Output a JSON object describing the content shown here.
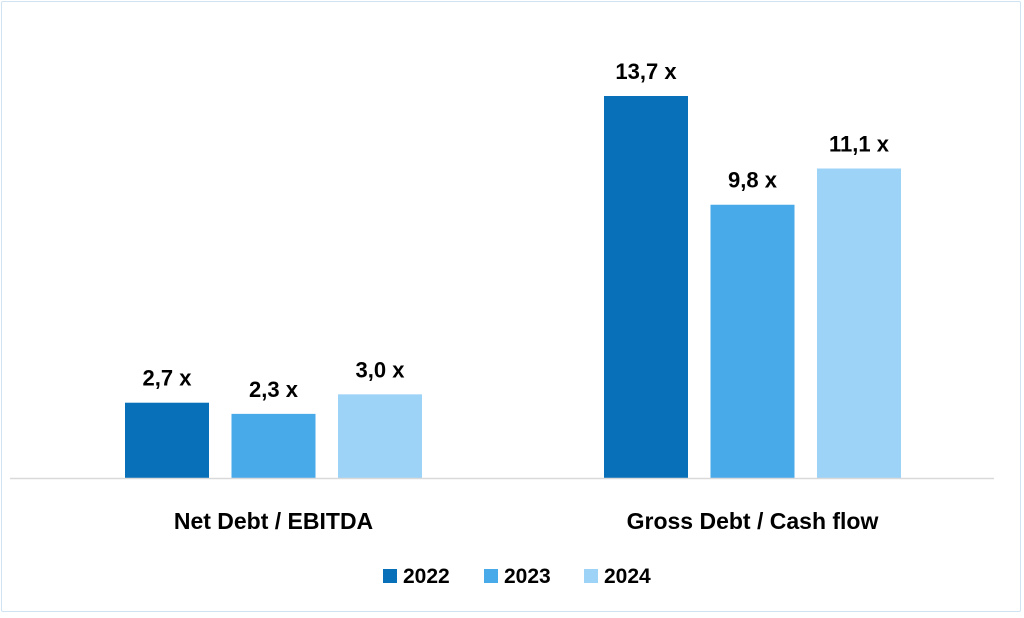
{
  "chart_data": {
    "type": "bar",
    "categories": [
      "Net Debt / EBITDA",
      "Gross Debt / Cash flow"
    ],
    "series": [
      {
        "name": "2022",
        "color": "#0770b9",
        "values": [
          2.7,
          13.7
        ],
        "labels": [
          "2,7 x",
          "13,7 x"
        ]
      },
      {
        "name": "2023",
        "color": "#49aaea",
        "values": [
          2.3,
          9.8
        ],
        "labels": [
          "2,3 x",
          "9,8 x"
        ]
      },
      {
        "name": "2024",
        "color": "#9dd3f7",
        "values": [
          3.0,
          11.1
        ],
        "labels": [
          "3,0 x",
          "11,1 x"
        ]
      }
    ],
    "ylim": [
      0,
      14
    ],
    "grid": false,
    "legend_position": "bottom",
    "axis_color": "#d9d9d9"
  }
}
